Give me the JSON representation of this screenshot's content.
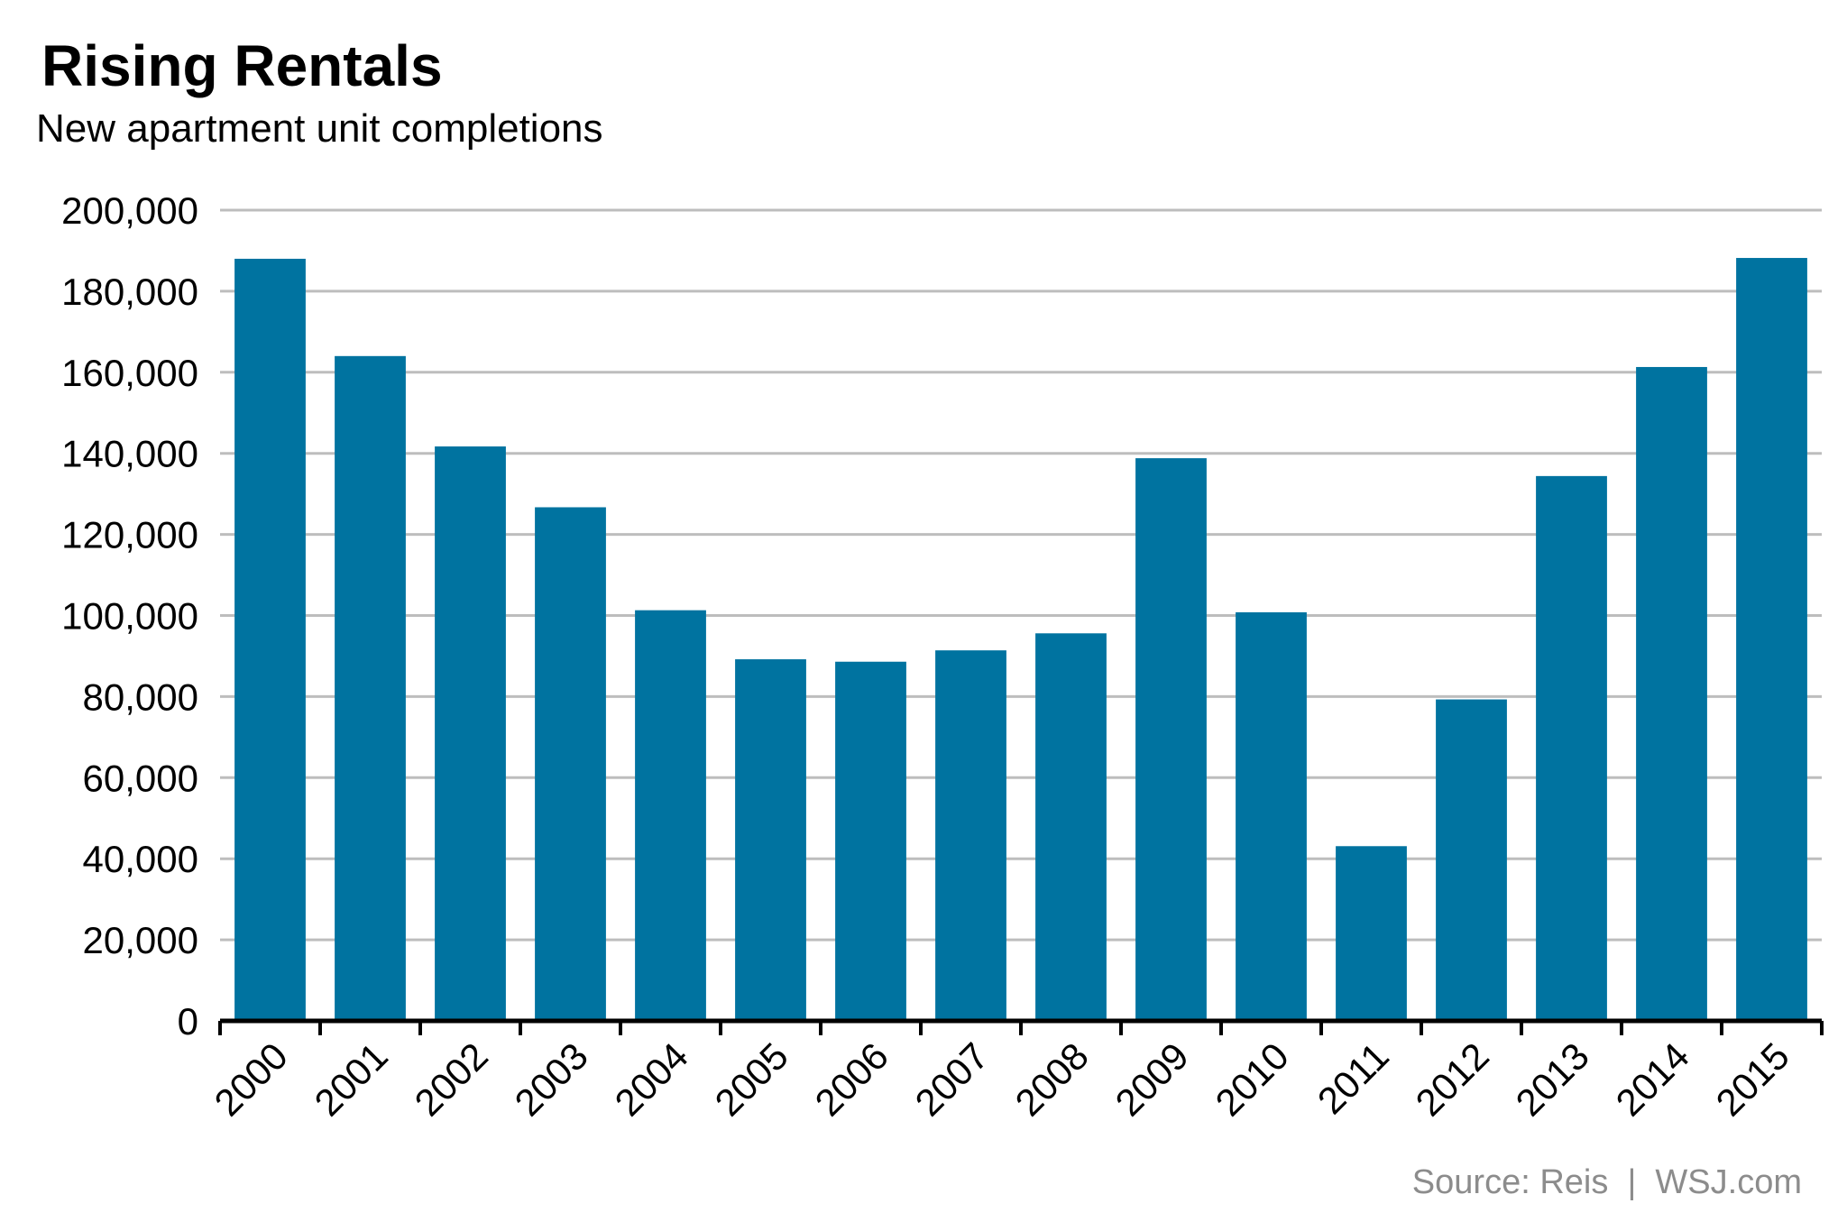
{
  "header": {
    "title": "Rising Rentals",
    "subtitle": "New apartment unit completions"
  },
  "footer": {
    "source": "Source: Reis  |  WSJ.com"
  },
  "colors": {
    "bar": "#0073a0",
    "grid": "#bdbdbd",
    "axis": "#000000"
  },
  "chart_data": {
    "type": "bar",
    "title": "Rising Rentals",
    "subtitle": "New apartment unit completions",
    "xlabel": "",
    "ylabel": "",
    "categories": [
      "2000",
      "2001",
      "2002",
      "2003",
      "2004",
      "2005",
      "2006",
      "2007",
      "2008",
      "2009",
      "2010",
      "2011",
      "2012",
      "2013",
      "2014",
      "2015"
    ],
    "values": [
      188000,
      164000,
      141700,
      126700,
      101300,
      89200,
      88600,
      91400,
      95600,
      138800,
      100800,
      43100,
      79300,
      134400,
      161300,
      188200
    ],
    "ylim": [
      0,
      200000
    ],
    "yticks": [
      0,
      20000,
      40000,
      60000,
      80000,
      100000,
      120000,
      140000,
      160000,
      180000,
      200000
    ],
    "ytick_labels": [
      "0",
      "20,000",
      "40,000",
      "60,000",
      "80,000",
      "100,000",
      "120,000",
      "140,000",
      "160,000",
      "180,000",
      "200,000"
    ],
    "grid": true
  }
}
